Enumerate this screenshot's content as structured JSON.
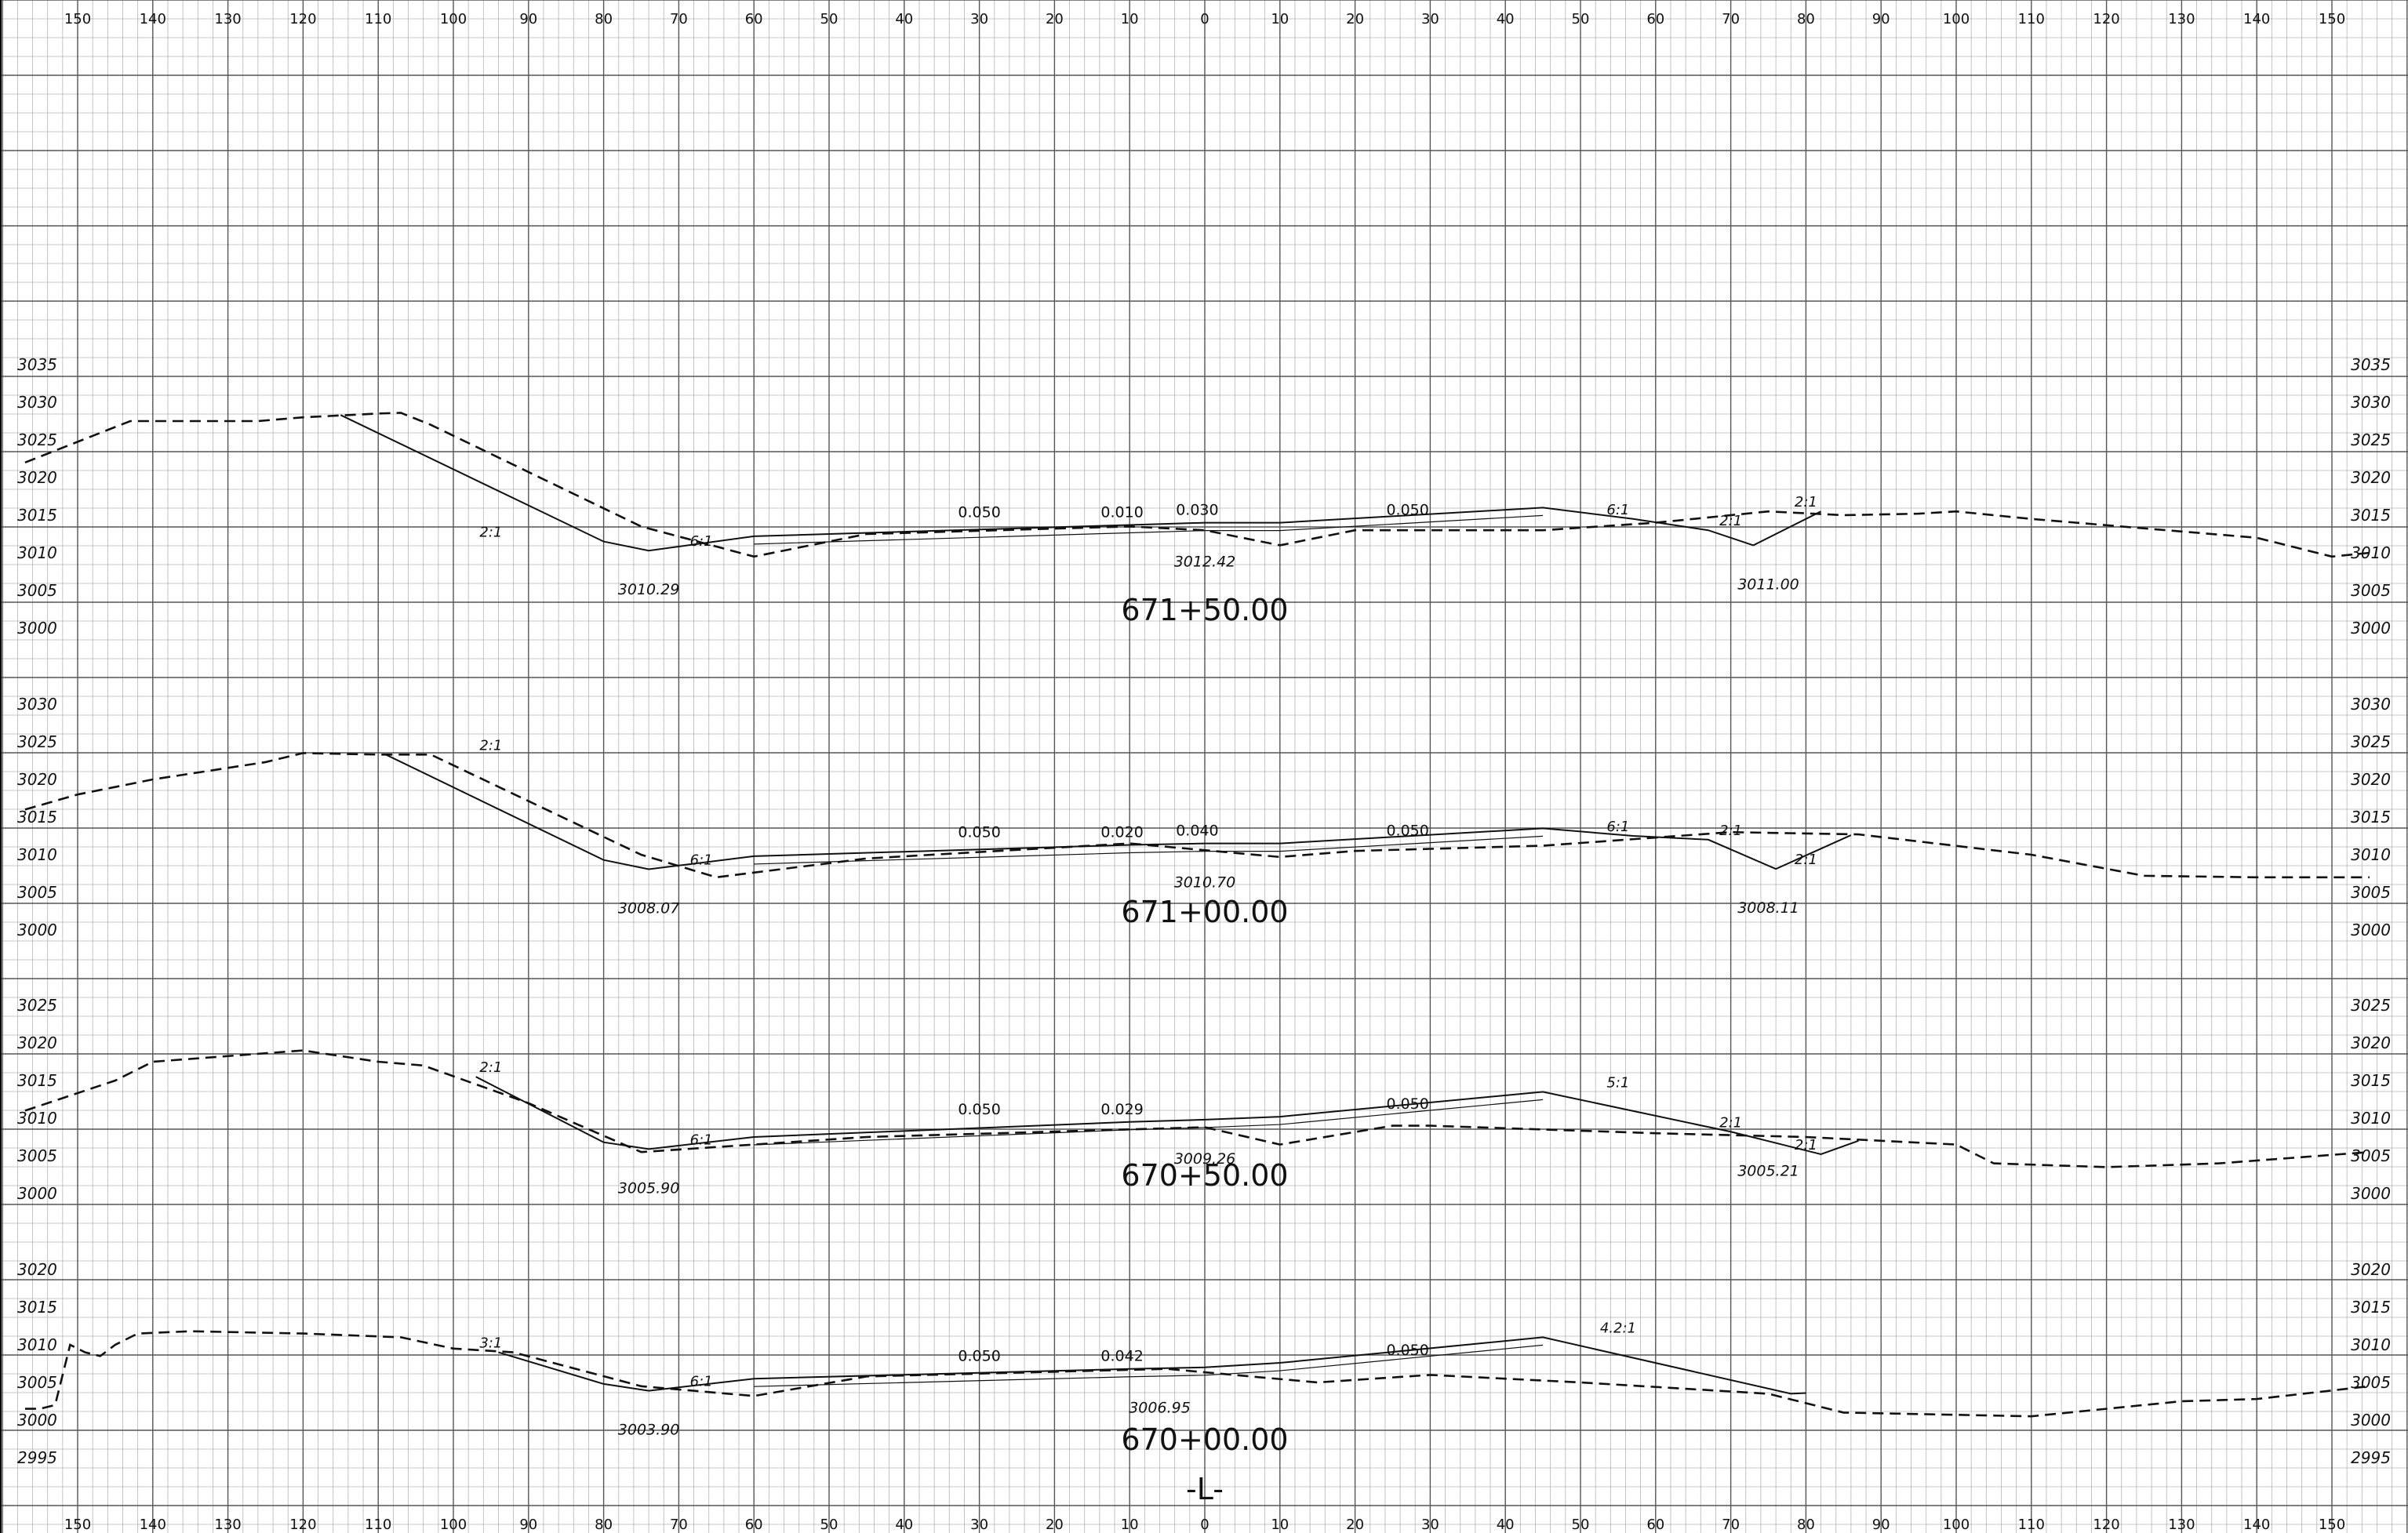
{
  "offset_labels": [
    "150",
    "140",
    "130",
    "120",
    "110",
    "100",
    "90",
    "80",
    "70",
    "60",
    "50",
    "40",
    "30",
    "20",
    "10",
    "0",
    "10",
    "20",
    "30",
    "40",
    "50",
    "60",
    "70",
    "80",
    "90",
    "100",
    "110",
    "120",
    "130",
    "140",
    "150"
  ],
  "centerline_label": "-L-",
  "sections": [
    {
      "station": "671+50.00",
      "elev_labels": [
        "3035",
        "3030",
        "3025",
        "3020",
        "3015",
        "3010",
        "3005",
        "3000"
      ],
      "grade_labels": [
        "0.050",
        "0.010",
        "0.030",
        "0.050"
      ],
      "slope_labels": [
        "2:1",
        "6:1",
        "6:1",
        "2:1",
        "2:1"
      ],
      "elevation_labels": [
        "3010.29",
        "3012.42",
        "3011.00"
      ],
      "existing_ground": [
        [
          -157,
          3022
        ],
        [
          -143,
          3027.5
        ],
        [
          -126,
          3027.5
        ],
        [
          -120,
          3028
        ],
        [
          -110,
          3028.5
        ],
        [
          -107,
          3028.6
        ],
        [
          -103,
          3027
        ],
        [
          -75,
          3013.5
        ],
        [
          -60,
          3009.5
        ],
        [
          -45,
          3012.5
        ],
        [
          -10,
          3013.5
        ],
        [
          0,
          3013
        ],
        [
          10,
          3011
        ],
        [
          20,
          3013
        ],
        [
          45,
          3013
        ],
        [
          60,
          3014
        ],
        [
          75,
          3015.5
        ],
        [
          85,
          3015
        ],
        [
          95,
          3015.2
        ],
        [
          100,
          3015.5
        ],
        [
          110,
          3014.5
        ],
        [
          140,
          3012
        ],
        [
          150,
          3009.5
        ],
        [
          155,
          3010
        ]
      ],
      "design": [
        [
          -115,
          3028.3
        ],
        [
          -80,
          3011.5
        ],
        [
          -74,
          3010.29
        ],
        [
          -60,
          3012.2
        ],
        [
          -10,
          3013.7
        ],
        [
          0,
          3014
        ],
        [
          10,
          3014
        ],
        [
          45,
          3016
        ],
        [
          57,
          3014.5
        ],
        [
          67,
          3013
        ],
        [
          73,
          3011
        ],
        [
          82,
          3015.5
        ]
      ]
    },
    {
      "station": "671+00.00",
      "elev_labels": [
        "3030",
        "3025",
        "3020",
        "3015",
        "3010",
        "3005",
        "3000"
      ],
      "grade_labels": [
        "0.050",
        "0.020",
        "0.040",
        "0.050"
      ],
      "slope_labels": [
        "2:1",
        "6:1",
        "6:1",
        "2:1",
        "2:1"
      ],
      "elevation_labels": [
        "3008.07",
        "3010.70",
        "3008.11"
      ],
      "existing_ground": [
        [
          -157,
          3016
        ],
        [
          -150,
          3018
        ],
        [
          -140,
          3020
        ],
        [
          -125,
          3022.3
        ],
        [
          -120,
          3023.5
        ],
        [
          -110,
          3023.3
        ],
        [
          -103,
          3023.3
        ],
        [
          -75,
          3010
        ],
        [
          -65,
          3007
        ],
        [
          -45,
          3009.5
        ],
        [
          -10,
          3011.5
        ],
        [
          10,
          3009.7
        ],
        [
          20,
          3010.5
        ],
        [
          45,
          3011.2
        ],
        [
          70,
          3013
        ],
        [
          87,
          3012.7
        ],
        [
          110,
          3010
        ],
        [
          125,
          3007.2
        ],
        [
          140,
          3007
        ],
        [
          155,
          3007
        ]
      ],
      "design": [
        [
          -109,
          3023.3
        ],
        [
          -80,
          3009.3
        ],
        [
          -74,
          3008.07
        ],
        [
          -60,
          3009.8
        ],
        [
          -10,
          3011.3
        ],
        [
          0,
          3011.5
        ],
        [
          10,
          3011.5
        ],
        [
          45,
          3013.5
        ],
        [
          57,
          3012.5
        ],
        [
          67,
          3012
        ],
        [
          76,
          3008.11
        ],
        [
          86,
          3012.6
        ]
      ]
    },
    {
      "station": "670+50.00",
      "elev_labels": [
        "3025",
        "3020",
        "3015",
        "3010",
        "3005",
        "3000"
      ],
      "grade_labels": [
        "0.050",
        "0.029",
        "0.050"
      ],
      "slope_labels": [
        "2:1",
        "6:1",
        "5:1",
        "2:1",
        "2:1"
      ],
      "elevation_labels": [
        "3005.90",
        "3009.26",
        "3005.21"
      ],
      "existing_ground": [
        [
          -157,
          3011
        ],
        [
          -145,
          3015
        ],
        [
          -140,
          3017.5
        ],
        [
          -120,
          3019
        ],
        [
          -110,
          3017.5
        ],
        [
          -104,
          3017
        ],
        [
          -90,
          3012
        ],
        [
          -75,
          3005.5
        ],
        [
          -45,
          3007.5
        ],
        [
          0,
          3008.8
        ],
        [
          10,
          3006.5
        ],
        [
          25,
          3009
        ],
        [
          30,
          3009
        ],
        [
          60,
          3008
        ],
        [
          80,
          3007.5
        ],
        [
          100,
          3006.5
        ],
        [
          105,
          3004
        ],
        [
          120,
          3003.5
        ],
        [
          135,
          3004
        ],
        [
          155,
          3005.5
        ]
      ],
      "design": [
        [
          -97,
          3015.5
        ],
        [
          -80,
          3006.8
        ],
        [
          -74,
          3005.9
        ],
        [
          -60,
          3007.5
        ],
        [
          -10,
          3009.5
        ],
        [
          0,
          3009.8
        ],
        [
          10,
          3010.2
        ],
        [
          45,
          3013.5
        ],
        [
          70,
          3008.2
        ],
        [
          82,
          3005.21
        ],
        [
          87,
          3007
        ]
      ]
    },
    {
      "station": "670+00.00",
      "elev_labels": [
        "3020",
        "3015",
        "3010",
        "3005",
        "3000",
        "2995"
      ],
      "grade_labels": [
        "0.050",
        "0.042",
        "0.050"
      ],
      "slope_labels": [
        "3:1",
        "6:1",
        "4.2:1"
      ],
      "elevation_labels": [
        "3003.90",
        "3006.95"
      ],
      "existing_ground": [
        [
          -157,
          3001.5
        ],
        [
          -155,
          3001.5
        ],
        [
          -153,
          3002
        ],
        [
          -151,
          3010
        ],
        [
          -149,
          3009
        ],
        [
          -147,
          3008.5
        ],
        [
          -145,
          3010
        ],
        [
          -142,
          3011.5
        ],
        [
          -135,
          3011.8
        ],
        [
          -120,
          3011.5
        ],
        [
          -107,
          3011
        ],
        [
          -100,
          3009.5
        ],
        [
          -92,
          3009
        ],
        [
          -75,
          3004.5
        ],
        [
          -60,
          3003.2
        ],
        [
          -45,
          3005.8
        ],
        [
          -5,
          3006.8
        ],
        [
          15,
          3005
        ],
        [
          30,
          3006
        ],
        [
          50,
          3005
        ],
        [
          75,
          3003.5
        ],
        [
          85,
          3001
        ],
        [
          110,
          3000.5
        ],
        [
          130,
          3002.5
        ],
        [
          140,
          3002.8
        ],
        [
          155,
          3004.5
        ]
      ],
      "design": [
        [
          -94,
          3009
        ],
        [
          -80,
          3004.8
        ],
        [
          -74,
          3003.9
        ],
        [
          -60,
          3005.5
        ],
        [
          -10,
          3006.8
        ],
        [
          0,
          3007
        ],
        [
          10,
          3007.6
        ],
        [
          45,
          3011
        ],
        [
          78,
          3003.5
        ],
        [
          80,
          3003.6
        ]
      ]
    }
  ]
}
